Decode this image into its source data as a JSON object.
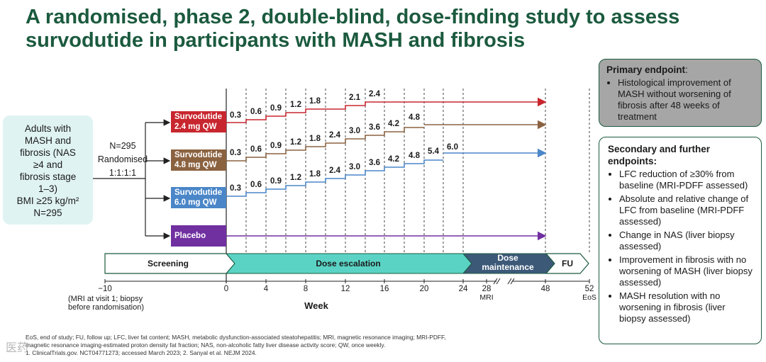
{
  "title": "A randomised, phase 2, double-blind, dose-finding study to assess survodutide in participants with MASH and fibrosis",
  "population": {
    "lines": [
      "Adults with",
      "MASH and",
      "fibrosis (NAS",
      "≥4 and",
      "fibrosis stage",
      "1–3)",
      "BMI ≥25 kg/m²",
      "N=295"
    ]
  },
  "randomisation": {
    "n": "N=295",
    "label": "Randomised",
    "ratio": "1:1:1:1"
  },
  "arms": [
    {
      "name": "Survodutide",
      "dose": "2.4 mg QW",
      "color": "#c8262e",
      "steps": [
        "0.3",
        "0.6",
        "0.9",
        "1.2",
        "1.8",
        "2.1",
        "2.4"
      ]
    },
    {
      "name": "Survodutide",
      "dose": "4.8 mg QW",
      "color": "#8b6240",
      "steps": [
        "0.3",
        "0.6",
        "0.9",
        "1.2",
        "1.8",
        "2.4",
        "3.0",
        "3.6",
        "4.2",
        "4.8"
      ]
    },
    {
      "name": "Survodutide",
      "dose": "6.0 mg QW",
      "color": "#4a86c8",
      "steps": [
        "0.3",
        "0.6",
        "0.9",
        "1.2",
        "1.8",
        "2.4",
        "3.0",
        "3.6",
        "4.2",
        "4.8",
        "5.4",
        "6.0"
      ]
    },
    {
      "name": "Placebo",
      "dose": "",
      "color": "#7030a0",
      "steps": []
    }
  ],
  "phases": {
    "screening": "Screening",
    "escalation": "Dose escalation",
    "maintenance_1": "Dose",
    "maintenance_2": "maintenance",
    "fu": "FU"
  },
  "axis": {
    "ticks": [
      "−10",
      "0",
      "4",
      "8",
      "12",
      "16",
      "20",
      "24",
      "28",
      "48",
      "52"
    ],
    "screening_note_1": "(MRI at visit 1; biopsy",
    "screening_note_2": "before randomisation)",
    "mri_note": "MRI",
    "eos_note": "EoS",
    "xlabel": "Week"
  },
  "primary": {
    "heading": "Primary endpoint",
    "suffix": ":",
    "items": [
      "Histological improvement of MASH without worsening of fibrosis after 48 weeks of treatment"
    ]
  },
  "secondary": {
    "heading": "Secondary and further endpoints:",
    "items": [
      "LFC reduction of ≥30% from baseline (MRI-PDFF assessed)",
      "Absolute and relative change of LFC from baseline (MRI-PDFF assessed)",
      "Change in NAS (liver biopsy assessed)",
      "Improvement in fibrosis with no worsening of MASH (liver biopsy assessed)",
      "MASH resolution with no worsening in fibrosis (liver biopsy assessed)"
    ]
  },
  "footnote": {
    "line1": "EoS, end of study; FU, follow up; LFC, liver fat content; MASH, metabolic dysfunction-associated steatohepatitis; MRI, magnetic resonance imaging; MRI-PDFF,",
    "line2": "magnetic resonance imaging-estimated proton density fat fraction; NAS, non-alcoholic fatty liver disease activity score; QW, once weekly.",
    "line3": "1. ClinicalTrials.gov. NCT04771273; accessed March 2023; 2. Sanyal et al. NEJM 2024."
  },
  "watermark": "医药"
}
